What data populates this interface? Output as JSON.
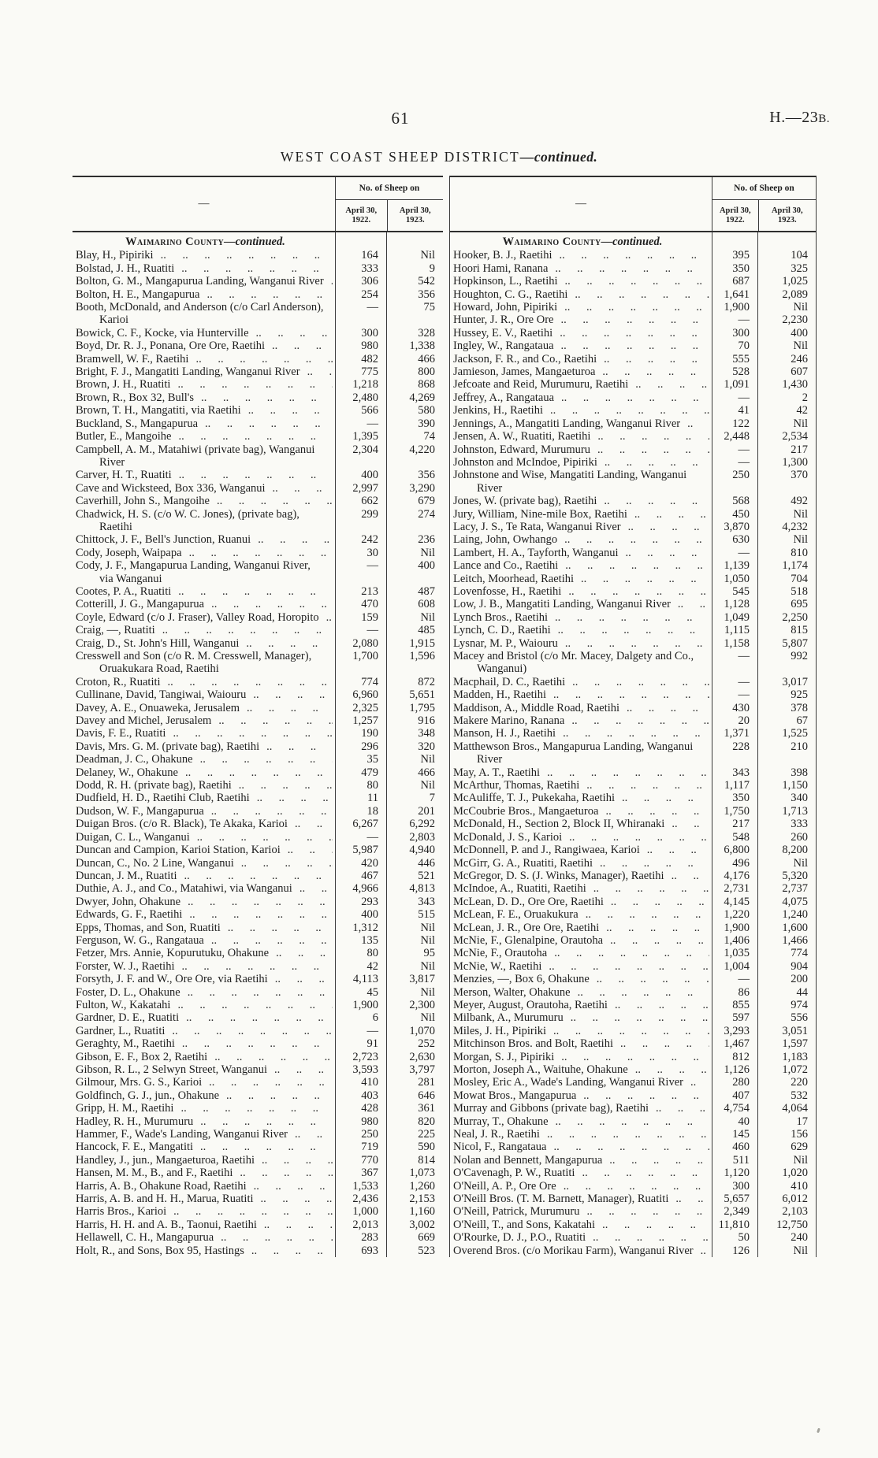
{
  "colors": {
    "paper": "#fafaf6",
    "ink": "#1f1f1f",
    "rule": "#3a3a3a"
  },
  "header": {
    "page_number": "61",
    "doc_ref_main": "H.—23",
    "doc_ref_sub": "B."
  },
  "title": {
    "main": "WEST COAST SHEEP DISTRICT",
    "suffix": "—continued."
  },
  "col_header": {
    "dash": "—",
    "span": "No. of Sheep on",
    "date1_line1": "April 30,",
    "date1_line2": "1922.",
    "date2_line1": "April 30,",
    "date2_line2": "1923."
  },
  "left_table": {
    "heading_main": "Waimarino County",
    "heading_suffix": "—continued.",
    "rows": [
      [
        "Blay, H., Pipiriki",
        "164",
        "Nil"
      ],
      [
        "Bolstad, J. H., Ruatiti",
        "333",
        "9"
      ],
      [
        "Bolton, G. M., Mangapurua Landing, Wanganui River",
        "306",
        "542"
      ],
      [
        "Bolton, H. E., Mangapurua",
        "254",
        "356"
      ],
      [
        "Booth, McDonald, and Anderson (c/o Carl Anderson), Karioi",
        "—",
        "75"
      ],
      [
        "Bowick, C. F., Kocke, via Hunterville",
        "300",
        "328"
      ],
      [
        "Boyd, Dr. R. J., Ponana, Ore Ore, Raetihi",
        "980",
        "1,338"
      ],
      [
        "Bramwell, W. F., Raetihi",
        "482",
        "466"
      ],
      [
        "Bright, F. J., Mangatiti Landing, Wanganui River",
        "775",
        "800"
      ],
      [
        "Brown, J. H., Ruatiti",
        "1,218",
        "868"
      ],
      [
        "Brown, R., Box 32, Bull's",
        "2,480",
        "4,269"
      ],
      [
        "Brown, T. H., Mangatiti, via Raetihi",
        "566",
        "580"
      ],
      [
        "Buckland, S., Mangapurua",
        "—",
        "390"
      ],
      [
        "Butler, E., Mangoihe",
        "1,395",
        "74"
      ],
      [
        "Campbell, A. M., Matahiwi (private bag), Wanganui River",
        "2,304",
        "4,220"
      ],
      [
        "Carver, H. T., Ruatiti",
        "400",
        "356"
      ],
      [
        "Cave and Wicksteed, Box 336, Wanganui",
        "2,997",
        "3,290"
      ],
      [
        "Caverhill, John S., Mangoihe",
        "662",
        "679"
      ],
      [
        "Chadwick, H. S. (c/o W. C. Jones), (private bag), Raetihi",
        "299",
        "274"
      ],
      [
        "Chittock, J. F., Bell's Junction, Ruanui",
        "242",
        "236"
      ],
      [
        "Cody, Joseph, Waipapa",
        "30",
        "Nil"
      ],
      [
        "Cody, J. F., Mangapurua Landing, Wanganui River, via Wanganui",
        "—",
        "400"
      ],
      [
        "Cootes, P. A., Ruatiti",
        "213",
        "487"
      ],
      [
        "Cotterill, J. G., Mangapurua",
        "470",
        "608"
      ],
      [
        "Coyle, Edward (c/o J. Fraser), Valley Road, Horopito",
        "159",
        "Nil"
      ],
      [
        "Craig, —, Ruatiti",
        "—",
        "485"
      ],
      [
        "Craig, D., St. John's Hill, Wanganui",
        "2,080",
        "1,915"
      ],
      [
        "Cresswell and Son (c/o R. M. Cresswell, Manager), Oruakukara Road, Raetihi",
        "1,700",
        "1,596"
      ],
      [
        "Croton, R., Ruatiti",
        "774",
        "872"
      ],
      [
        "Cullinane, David, Tangiwai, Waiouru",
        "6,960",
        "5,651"
      ],
      [
        "Davey, A. E., Onuaweka, Jerusalem",
        "2,325",
        "1,795"
      ],
      [
        "Davey and Michel, Jerusalem",
        "1,257",
        "916"
      ],
      [
        "Davis, F. E., Ruatiti",
        "190",
        "348"
      ],
      [
        "Davis, Mrs. G. M. (private bag), Raetihi",
        "296",
        "320"
      ],
      [
        "Deadman, J. C., Ohakune",
        "35",
        "Nil"
      ],
      [
        "Delaney, W., Ohakune",
        "479",
        "466"
      ],
      [
        "Dodd, R. H. (private bag), Raetihi",
        "80",
        "Nil"
      ],
      [
        "Dudfield, H. D., Raetihi Club, Raetihi",
        "11",
        "7"
      ],
      [
        "Dudson, W. F., Mangapurua",
        "18",
        "201"
      ],
      [
        "Duigan Bros. (c/o R. Black), Te Akaka, Karioi",
        "6,267",
        "6,292"
      ],
      [
        "Duigan, C. L., Wanganui",
        "—",
        "2,803"
      ],
      [
        "Duncan and Campion, Karioi Station, Karioi",
        "5,987",
        "4,940"
      ],
      [
        "Duncan, C., No. 2 Line, Wanganui",
        "420",
        "446"
      ],
      [
        "Duncan, J. M., Ruatiti",
        "467",
        "521"
      ],
      [
        "Duthie, A. J., and Co., Matahiwi, via Wanganui",
        "4,966",
        "4,813"
      ],
      [
        "Dwyer, John, Ohakune",
        "293",
        "343"
      ],
      [
        "Edwards, G. F., Raetihi",
        "400",
        "515"
      ],
      [
        "Epps, Thomas, and Son, Ruatiti",
        "1,312",
        "Nil"
      ],
      [
        "Ferguson, W. G., Rangataua",
        "135",
        "Nil"
      ],
      [
        "Fetzer, Mrs. Annie, Kopurutuku, Ohakune",
        "80",
        "95"
      ],
      [
        "Forster, W. J., Raetihi",
        "42",
        "Nil"
      ],
      [
        "Forsyth, J. F. and W., Ore Ore, via Raetihi",
        "4,113",
        "3,817"
      ],
      [
        "Foster, D. L., Ohakune",
        "45",
        "Nil"
      ],
      [
        "Fulton, W., Kakatahi",
        "1,900",
        "2,300"
      ],
      [
        "Gardner, D. E., Ruatiti",
        "6",
        "Nil"
      ],
      [
        "Gardner, L., Ruatiti",
        "—",
        "1,070"
      ],
      [
        "Geraghty, M., Raetihi",
        "91",
        "252"
      ],
      [
        "Gibson, E. F., Box 2, Raetihi",
        "2,723",
        "2,630"
      ],
      [
        "Gibson, R. L., 2 Selwyn Street, Wanganui",
        "3,593",
        "3,797"
      ],
      [
        "Gilmour, Mrs. G. S., Karioi",
        "410",
        "281"
      ],
      [
        "Goldfinch, G. J., jun., Ohakune",
        "403",
        "646"
      ],
      [
        "Gripp, H. M., Raetihi",
        "428",
        "361"
      ],
      [
        "Hadley, R. H., Murumuru",
        "980",
        "820"
      ],
      [
        "Hammer, F., Wade's Landing, Wanganui River",
        "250",
        "225"
      ],
      [
        "Hancock, F. E., Mangatiti",
        "719",
        "590"
      ],
      [
        "Handley, J., jun., Mangaeturoa, Raetihi",
        "770",
        "814"
      ],
      [
        "Hansen, M. M., B., and F., Raetihi",
        "367",
        "1,073"
      ],
      [
        "Harris, A. B., Ohakune Road, Raetihi",
        "1,533",
        "1,260"
      ],
      [
        "Harris, A. B. and H. H., Marua, Ruatiti",
        "2,436",
        "2,153"
      ],
      [
        "Harris Bros., Karioi",
        "1,000",
        "1,160"
      ],
      [
        "Harris, H. H. and A. B., Taonui, Raetihi",
        "2,013",
        "3,002"
      ],
      [
        "Hellawell, C. H., Mangapurua",
        "283",
        "669"
      ],
      [
        "Holt, R., and Sons, Box 95, Hastings",
        "693",
        "523"
      ]
    ]
  },
  "right_table": {
    "heading_main": "Waimarino County",
    "heading_suffix": "—continued.",
    "rows": [
      [
        "Hooker, B. J., Raetihi",
        "395",
        "104"
      ],
      [
        "Hoori Hami, Ranana",
        "350",
        "325"
      ],
      [
        "Hopkinson, L., Raetihi",
        "687",
        "1,025"
      ],
      [
        "Houghton, C. G., Raetihi",
        "1,641",
        "2,089"
      ],
      [
        "Howard, John, Pipiriki",
        "1,900",
        "Nil"
      ],
      [
        "Hunter, J. R., Ore Ore",
        "—",
        "2,230"
      ],
      [
        "Hussey, E. V., Raetihi",
        "300",
        "400"
      ],
      [
        "Ingley, W., Rangataua",
        "70",
        "Nil"
      ],
      [
        "Jackson, F. R., and Co., Raetihi",
        "555",
        "246"
      ],
      [
        "Jamieson, James, Mangaeturoa",
        "528",
        "607"
      ],
      [
        "Jefcoate and Reid, Murumuru, Raetihi",
        "1,091",
        "1,430"
      ],
      [
        "Jeffrey, A., Rangataua",
        "—",
        "2"
      ],
      [
        "Jenkins, H., Raetihi",
        "41",
        "42"
      ],
      [
        "Jennings, A., Mangatiti Landing, Wanganui River",
        "122",
        "Nil"
      ],
      [
        "Jensen, A. W., Ruatiti, Raetihi",
        "2,448",
        "2,534"
      ],
      [
        "Johnston, Edward, Murumuru",
        "—",
        "217"
      ],
      [
        "Johnston and McIndoe, Pipiriki",
        "—",
        "1,300"
      ],
      [
        "Johnstone and Wise, Mangatiti Landing, Wanganui River",
        "250",
        "370"
      ],
      [
        "Jones, W. (private bag), Raetihi",
        "568",
        "492"
      ],
      [
        "Jury, William, Nine-mile Box, Raetihi",
        "450",
        "Nil"
      ],
      [
        "Lacy, J. S., Te Rata, Wanganui River",
        "3,870",
        "4,232"
      ],
      [
        "Laing, John, Owhango",
        "630",
        "Nil"
      ],
      [
        "Lambert, H. A., Tayforth, Wanganui",
        "—",
        "810"
      ],
      [
        "Lance and Co., Raetihi",
        "1,139",
        "1,174"
      ],
      [
        "Leitch, Moorhead, Raetihi",
        "1,050",
        "704"
      ],
      [
        "Lovenfosse, H., Raetihi",
        "545",
        "518"
      ],
      [
        "Low, J. B., Mangatiti Landing, Wanganui River",
        "1,128",
        "695"
      ],
      [
        "Lynch Bros., Raetihi",
        "1,049",
        "2,250"
      ],
      [
        "Lynch, C. D., Raetihi",
        "1,115",
        "815"
      ],
      [
        "Lysnar, M. P., Waiouru",
        "1,158",
        "5,807"
      ],
      [
        "Macey and Bristol (c/o Mr. Macey, Dalgety and Co., Wanganui)",
        "—",
        "992"
      ],
      [
        "Macphail, D. C., Raetihi",
        "—",
        "3,017"
      ],
      [
        "Madden, H., Raetihi",
        "—",
        "925"
      ],
      [
        "Maddison, A., Middle Road, Raetihi",
        "430",
        "378"
      ],
      [
        "Makere Marino, Ranana",
        "20",
        "67"
      ],
      [
        "Manson, H. J., Raetihi",
        "1,371",
        "1,525"
      ],
      [
        "Matthewson Bros., Mangapurua Landing, Wanganui River",
        "228",
        "210"
      ],
      [
        "May, A. T., Raetihi",
        "343",
        "398"
      ],
      [
        "McArthur, Thomas, Raetihi",
        "1,117",
        "1,150"
      ],
      [
        "McAuliffe, T. J., Pukekaha, Raetihi",
        "350",
        "340"
      ],
      [
        "McCoubrie Bros., Mangaeturoa",
        "1,750",
        "1,713"
      ],
      [
        "McDonald, H., Section 2, Block II, Whiranaki",
        "217",
        "333"
      ],
      [
        "McDonald, J. S., Karioi",
        "548",
        "260"
      ],
      [
        "McDonnell, P. and J., Rangiwaea, Karioi",
        "6,800",
        "8,200"
      ],
      [
        "McGirr, G. A., Ruatiti, Raetihi",
        "496",
        "Nil"
      ],
      [
        "McGregor, D. S. (J. Winks, Manager), Raetihi",
        "4,176",
        "5,320"
      ],
      [
        "McIndoe, A., Ruatiti, Raetihi",
        "2,731",
        "2,737"
      ],
      [
        "McLean, D. D., Ore Ore, Raetihi",
        "4,145",
        "4,075"
      ],
      [
        "McLean, F. E., Oruakukura",
        "1,220",
        "1,240"
      ],
      [
        "McLean, J. R., Ore Ore, Raetihi",
        "1,900",
        "1,600"
      ],
      [
        "McNie, F., Glenalpine, Orautoha",
        "1,406",
        "1,466"
      ],
      [
        "McNie, F., Orautoha",
        "1,035",
        "774"
      ],
      [
        "McNie, W., Raetihi",
        "1,004",
        "904"
      ],
      [
        "Menzies, —, Box 6, Ohakune",
        "—",
        "200"
      ],
      [
        "Merson, Walter, Ohakune",
        "86",
        "44"
      ],
      [
        "Meyer, August, Orautoha, Raetihi",
        "855",
        "974"
      ],
      [
        "Milbank, A., Murumuru",
        "597",
        "556"
      ],
      [
        "Miles, J. H., Pipiriki",
        "3,293",
        "3,051"
      ],
      [
        "Mitchinson Bros. and Bolt, Raetihi",
        "1,467",
        "1,597"
      ],
      [
        "Morgan, S. J., Pipiriki",
        "812",
        "1,183"
      ],
      [
        "Morton, Joseph A., Waituhe, Ohakune",
        "1,126",
        "1,072"
      ],
      [
        "Mosley, Eric A., Wade's Landing, Wanganui River",
        "280",
        "220"
      ],
      [
        "Mowat Bros., Mangapurua",
        "407",
        "532"
      ],
      [
        "Murray and Gibbons (private bag), Raetihi",
        "4,754",
        "4,064"
      ],
      [
        "Murray, T., Ohakune",
        "40",
        "17"
      ],
      [
        "Neal, J. R., Raetihi",
        "145",
        "156"
      ],
      [
        "Nicol, F., Rangataua",
        "460",
        "629"
      ],
      [
        "Nolan and Bennett, Mangapurua",
        "511",
        "Nil"
      ],
      [
        "O'Cavenagh, P. W., Ruatiti",
        "1,120",
        "1,020"
      ],
      [
        "O'Neill, A. P., Ore Ore",
        "300",
        "410"
      ],
      [
        "O'Neill Bros. (T. M. Barnett, Manager), Ruatiti",
        "5,657",
        "6,012"
      ],
      [
        "O'Neill, Patrick, Murumuru",
        "2,349",
        "2,103"
      ],
      [
        "O'Neill, T., and Sons, Kakatahi",
        "11,810",
        "12,750"
      ],
      [
        "O'Rourke, D. J., P.O., Ruatiti",
        "50",
        "240"
      ],
      [
        "Overend Bros. (c/o Morikau Farm), Wanganui River",
        "126",
        "Nil"
      ]
    ]
  }
}
